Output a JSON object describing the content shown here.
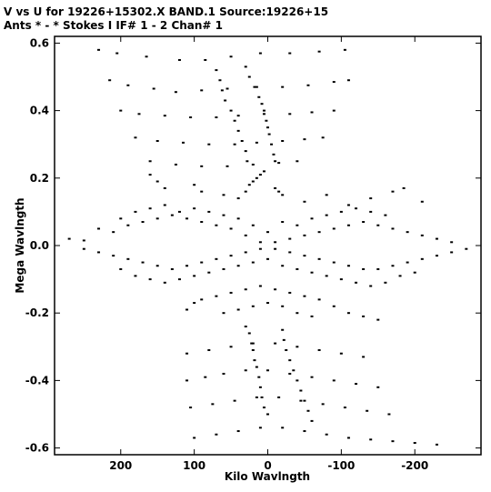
{
  "header": {
    "line1": "V vs U for 19226+15302.X BAND.1   Source:19226+15",
    "line2": "Ants * - *     Stokes I  IF# 1 - 2  Chan# 1"
  },
  "colors": {
    "points": "#000000",
    "axes": "#000000",
    "background": "#ffffff"
  },
  "chart_data": {
    "type": "scatter",
    "title": "V vs U for 19226+15302.X BAND.1   Source:19226+15",
    "subtitle": "Ants * - *     Stokes I  IF# 1 - 2  Chan# 1",
    "xlabel": "Kilo Wavlngth",
    "ylabel": "Mega Wavlngth",
    "xlim": [
      290,
      -290
    ],
    "ylim": [
      -0.62,
      0.62
    ],
    "x_reversed": true,
    "grid": false,
    "legend": "none",
    "x_ticks": [
      200,
      100,
      0,
      -100,
      -200
    ],
    "x_tick_labels": [
      "200",
      "100",
      "0",
      "-100",
      "-200"
    ],
    "y_ticks": [
      0.6,
      0.4,
      0.2,
      0.0,
      -0.2,
      -0.4,
      -0.6
    ],
    "y_tick_labels": [
      "0.6",
      "0.4",
      "0.2",
      "0.0",
      "-0.2",
      "-0.4",
      "-0.6"
    ],
    "series": [
      {
        "points": [
          [
            230,
            0.58
          ],
          [
            205,
            0.57
          ],
          [
            165,
            0.56
          ],
          [
            120,
            0.55
          ],
          [
            85,
            0.55
          ],
          [
            50,
            0.56
          ],
          [
            10,
            0.57
          ],
          [
            -30,
            0.57
          ],
          [
            -70,
            0.575
          ],
          [
            -105,
            0.58
          ],
          [
            215,
            0.49
          ],
          [
            190,
            0.475
          ],
          [
            155,
            0.465
          ],
          [
            125,
            0.455
          ],
          [
            90,
            0.46
          ],
          [
            55,
            0.465
          ],
          [
            15,
            0.47
          ],
          [
            -20,
            0.47
          ],
          [
            -55,
            0.475
          ],
          [
            -90,
            0.485
          ],
          [
            -110,
            0.49
          ],
          [
            200,
            0.4
          ],
          [
            175,
            0.39
          ],
          [
            140,
            0.385
          ],
          [
            105,
            0.38
          ],
          [
            70,
            0.38
          ],
          [
            40,
            0.385
          ],
          [
            5,
            0.39
          ],
          [
            -30,
            0.39
          ],
          [
            -60,
            0.395
          ],
          [
            -90,
            0.4
          ],
          [
            180,
            0.32
          ],
          [
            150,
            0.31
          ],
          [
            115,
            0.305
          ],
          [
            80,
            0.3
          ],
          [
            45,
            0.3
          ],
          [
            15,
            0.305
          ],
          [
            -20,
            0.31
          ],
          [
            -50,
            0.315
          ],
          [
            -75,
            0.32
          ],
          [
            160,
            0.25
          ],
          [
            125,
            0.24
          ],
          [
            90,
            0.235
          ],
          [
            55,
            0.235
          ],
          [
            20,
            0.24
          ],
          [
            -15,
            0.245
          ],
          [
            -40,
            0.25
          ],
          [
            30,
            0.53
          ],
          [
            25,
            0.5
          ],
          [
            18,
            0.47
          ],
          [
            12,
            0.44
          ],
          [
            8,
            0.42
          ],
          [
            5,
            0.4
          ],
          [
            2,
            0.37
          ],
          [
            0,
            0.35
          ],
          [
            -2,
            0.33
          ],
          [
            -5,
            0.3
          ],
          [
            -8,
            0.27
          ],
          [
            -10,
            0.25
          ],
          [
            70,
            0.52
          ],
          [
            65,
            0.49
          ],
          [
            62,
            0.46
          ],
          [
            58,
            0.43
          ],
          [
            50,
            0.4
          ],
          [
            45,
            0.37
          ],
          [
            40,
            0.34
          ],
          [
            35,
            0.31
          ],
          [
            30,
            0.28
          ],
          [
            28,
            0.25
          ],
          [
            5,
            0.22
          ],
          [
            10,
            0.21
          ],
          [
            15,
            0.2
          ],
          [
            20,
            0.19
          ],
          [
            25,
            0.18
          ],
          [
            -10,
            0.17
          ],
          [
            -15,
            0.16
          ],
          [
            -20,
            0.15
          ],
          [
            30,
            0.16
          ],
          [
            160,
            0.21
          ],
          [
            150,
            0.19
          ],
          [
            140,
            0.17
          ],
          [
            100,
            0.18
          ],
          [
            90,
            0.16
          ],
          [
            60,
            0.15
          ],
          [
            40,
            0.14
          ],
          [
            -50,
            0.13
          ],
          [
            -80,
            0.15
          ],
          [
            -110,
            0.12
          ],
          [
            -140,
            0.14
          ],
          [
            -170,
            0.16
          ],
          [
            -185,
            0.17
          ],
          [
            -210,
            0.13
          ],
          [
            270,
            0.02
          ],
          [
            250,
            0.015
          ],
          [
            230,
            0.05
          ],
          [
            210,
            0.04
          ],
          [
            190,
            0.06
          ],
          [
            170,
            0.07
          ],
          [
            150,
            0.08
          ],
          [
            130,
            0.09
          ],
          [
            110,
            0.08
          ],
          [
            90,
            0.07
          ],
          [
            70,
            0.06
          ],
          [
            50,
            0.05
          ],
          [
            30,
            0.03
          ],
          [
            10,
            0.01
          ],
          [
            -10,
            -0.01
          ],
          [
            -30,
            -0.02
          ],
          [
            -50,
            -0.03
          ],
          [
            -70,
            -0.04
          ],
          [
            -90,
            -0.05
          ],
          [
            -110,
            -0.06
          ],
          [
            -130,
            -0.07
          ],
          [
            -150,
            -0.07
          ],
          [
            -170,
            -0.06
          ],
          [
            -190,
            -0.05
          ],
          [
            -210,
            -0.04
          ],
          [
            -230,
            -0.03
          ],
          [
            -250,
            -0.02
          ],
          [
            -270,
            -0.01
          ],
          [
            250,
            -0.01
          ],
          [
            230,
            -0.02
          ],
          [
            210,
            -0.03
          ],
          [
            190,
            -0.04
          ],
          [
            170,
            -0.05
          ],
          [
            150,
            -0.06
          ],
          [
            130,
            -0.07
          ],
          [
            110,
            -0.06
          ],
          [
            90,
            -0.05
          ],
          [
            70,
            -0.04
          ],
          [
            50,
            -0.03
          ],
          [
            30,
            -0.02
          ],
          [
            10,
            -0.01
          ],
          [
            -10,
            0.01
          ],
          [
            -30,
            0.02
          ],
          [
            -50,
            0.03
          ],
          [
            -70,
            0.04
          ],
          [
            -90,
            0.05
          ],
          [
            -110,
            0.06
          ],
          [
            -130,
            0.07
          ],
          [
            -150,
            0.06
          ],
          [
            -170,
            0.05
          ],
          [
            -190,
            0.04
          ],
          [
            -210,
            0.03
          ],
          [
            -230,
            0.02
          ],
          [
            -250,
            0.01
          ],
          [
            200,
            0.08
          ],
          [
            180,
            0.1
          ],
          [
            160,
            0.11
          ],
          [
            140,
            0.12
          ],
          [
            120,
            0.1
          ],
          [
            100,
            0.11
          ],
          [
            80,
            0.1
          ],
          [
            60,
            0.09
          ],
          [
            40,
            0.08
          ],
          [
            20,
            0.06
          ],
          [
            0,
            0.04
          ],
          [
            -20,
            0.07
          ],
          [
            -40,
            0.06
          ],
          [
            -60,
            0.08
          ],
          [
            -80,
            0.09
          ],
          [
            -100,
            0.1
          ],
          [
            -120,
            0.11
          ],
          [
            -140,
            0.1
          ],
          [
            -160,
            0.09
          ],
          [
            200,
            -0.07
          ],
          [
            180,
            -0.09
          ],
          [
            160,
            -0.1
          ],
          [
            140,
            -0.11
          ],
          [
            120,
            -0.1
          ],
          [
            100,
            -0.09
          ],
          [
            80,
            -0.08
          ],
          [
            60,
            -0.07
          ],
          [
            40,
            -0.06
          ],
          [
            20,
            -0.05
          ],
          [
            0,
            -0.04
          ],
          [
            -20,
            -0.06
          ],
          [
            -40,
            -0.07
          ],
          [
            -60,
            -0.08
          ],
          [
            -80,
            -0.09
          ],
          [
            -100,
            -0.1
          ],
          [
            -120,
            -0.11
          ],
          [
            -140,
            -0.12
          ],
          [
            -160,
            -0.11
          ],
          [
            -180,
            -0.09
          ],
          [
            -200,
            -0.08
          ],
          [
            110,
            -0.19
          ],
          [
            100,
            -0.17
          ],
          [
            90,
            -0.16
          ],
          [
            70,
            -0.15
          ],
          [
            50,
            -0.14
          ],
          [
            30,
            -0.13
          ],
          [
            10,
            -0.12
          ],
          [
            -10,
            -0.13
          ],
          [
            -30,
            -0.14
          ],
          [
            -50,
            -0.15
          ],
          [
            -70,
            -0.16
          ],
          [
            -90,
            -0.18
          ],
          [
            -110,
            -0.2
          ],
          [
            -130,
            -0.21
          ],
          [
            -150,
            -0.22
          ],
          [
            60,
            -0.2
          ],
          [
            40,
            -0.19
          ],
          [
            20,
            -0.18
          ],
          [
            0,
            -0.17
          ],
          [
            -20,
            -0.18
          ],
          [
            -40,
            -0.2
          ],
          [
            -60,
            -0.21
          ],
          [
            30,
            -0.24
          ],
          [
            25,
            -0.26
          ],
          [
            22,
            -0.29
          ],
          [
            20,
            -0.31
          ],
          [
            18,
            -0.34
          ],
          [
            15,
            -0.36
          ],
          [
            12,
            -0.39
          ],
          [
            10,
            -0.42
          ],
          [
            8,
            -0.45
          ],
          [
            5,
            -0.48
          ],
          [
            0,
            -0.5
          ],
          [
            -20,
            -0.25
          ],
          [
            -22,
            -0.28
          ],
          [
            -25,
            -0.31
          ],
          [
            -30,
            -0.34
          ],
          [
            -35,
            -0.37
          ],
          [
            -40,
            -0.4
          ],
          [
            -45,
            -0.43
          ],
          [
            -50,
            -0.46
          ],
          [
            -55,
            -0.49
          ],
          [
            -60,
            -0.52
          ],
          [
            110,
            -0.32
          ],
          [
            80,
            -0.31
          ],
          [
            50,
            -0.3
          ],
          [
            20,
            -0.29
          ],
          [
            -10,
            -0.29
          ],
          [
            -40,
            -0.3
          ],
          [
            -70,
            -0.31
          ],
          [
            -100,
            -0.32
          ],
          [
            -130,
            -0.33
          ],
          [
            110,
            -0.4
          ],
          [
            85,
            -0.39
          ],
          [
            60,
            -0.38
          ],
          [
            30,
            -0.37
          ],
          [
            0,
            -0.37
          ],
          [
            -30,
            -0.38
          ],
          [
            -60,
            -0.39
          ],
          [
            -90,
            -0.4
          ],
          [
            -120,
            -0.41
          ],
          [
            -150,
            -0.42
          ],
          [
            105,
            -0.48
          ],
          [
            75,
            -0.47
          ],
          [
            45,
            -0.46
          ],
          [
            15,
            -0.45
          ],
          [
            -15,
            -0.45
          ],
          [
            -45,
            -0.46
          ],
          [
            -75,
            -0.47
          ],
          [
            -105,
            -0.48
          ],
          [
            -135,
            -0.49
          ],
          [
            -165,
            -0.5
          ],
          [
            100,
            -0.57
          ],
          [
            70,
            -0.56
          ],
          [
            40,
            -0.55
          ],
          [
            10,
            -0.54
          ],
          [
            -20,
            -0.54
          ],
          [
            -50,
            -0.55
          ],
          [
            -80,
            -0.56
          ],
          [
            -110,
            -0.57
          ],
          [
            -140,
            -0.575
          ],
          [
            -170,
            -0.58
          ],
          [
            -200,
            -0.585
          ],
          [
            -230,
            -0.59
          ]
        ]
      }
    ]
  }
}
